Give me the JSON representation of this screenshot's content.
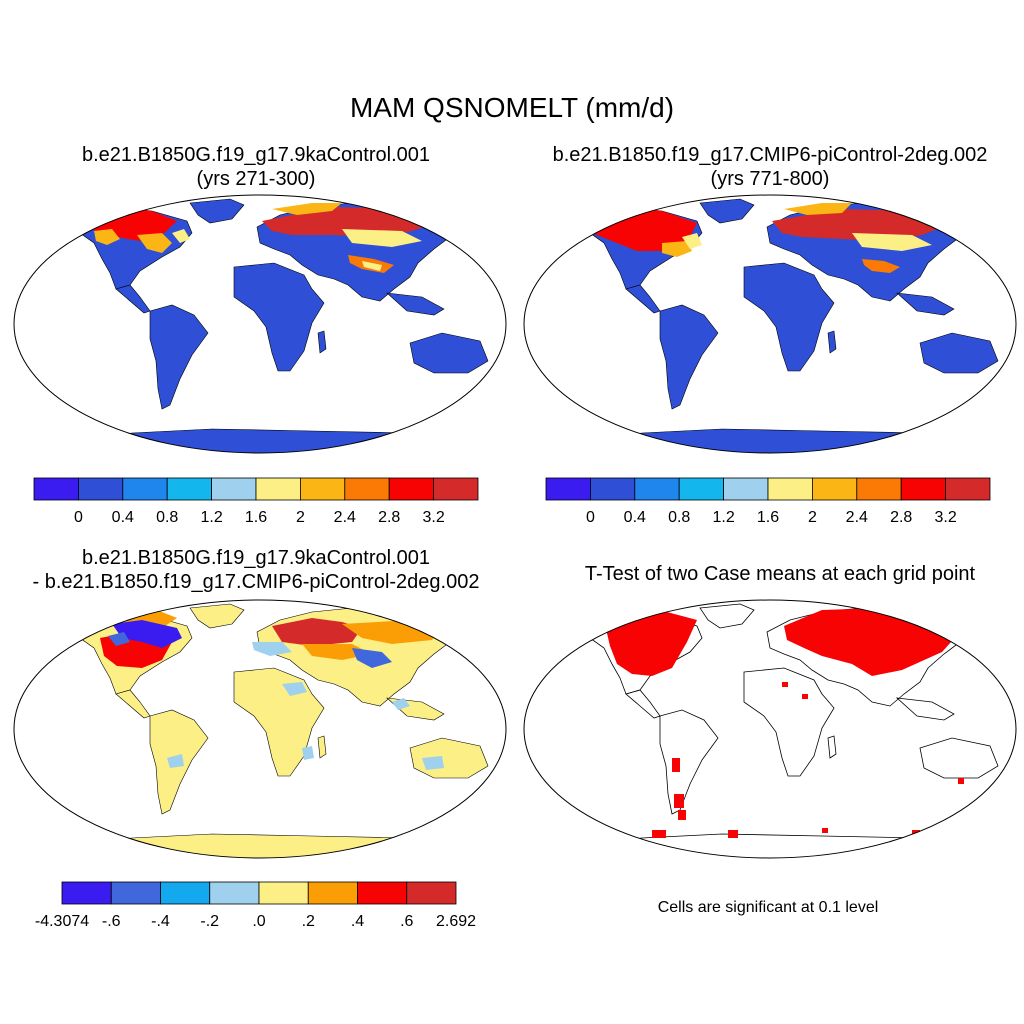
{
  "main_title": "MAM QSNOMELT (mm/d)",
  "panels": {
    "p1": {
      "title_line1": "b.e21.B1850G.f19_g17.9kaControl.001",
      "title_line2": "(yrs 271-300)"
    },
    "p2": {
      "title_line1": "b.e21.B1850.f19_g17.CMIP6-piControl-2deg.002",
      "title_line2": "(yrs 771-800)"
    },
    "p3": {
      "title_line1": "b.e21.B1850G.f19_g17.9kaControl.001",
      "title_line2": "- b.e21.B1850.f19_g17.CMIP6-piControl-2deg.002"
    },
    "p4": {
      "title_line1": "T-Test of two Case means at each grid point",
      "note": "Cells are significant at 0.1 level"
    }
  },
  "colorbars": {
    "abs": {
      "colors": [
        "#3b1cf0",
        "#2e4fd6",
        "#1f86ee",
        "#14b6ee",
        "#9fd0ee",
        "#fbef86",
        "#fbb514",
        "#fb7a06",
        "#f70303",
        "#d52a2a"
      ],
      "labels": [
        "0",
        "0.4",
        "0.8",
        "1.2",
        "1.6",
        "2",
        "2.4",
        "2.8",
        "3.2"
      ]
    },
    "diff": {
      "colors": [
        "#3b1cf0",
        "#4067dc",
        "#14a8ee",
        "#9fd0ee",
        "#fbef86",
        "#fb9e06",
        "#f70303",
        "#d52a2a"
      ],
      "labels": [
        "-4.3074",
        "-.6",
        "-.4",
        "-.2",
        ".0",
        ".2",
        ".4",
        ".6",
        "2.692"
      ]
    }
  },
  "colors": {
    "land_abs": "#2e4fd6",
    "land_diff": "#fbef86",
    "significant": "#f70303",
    "coast": "#000000"
  }
}
